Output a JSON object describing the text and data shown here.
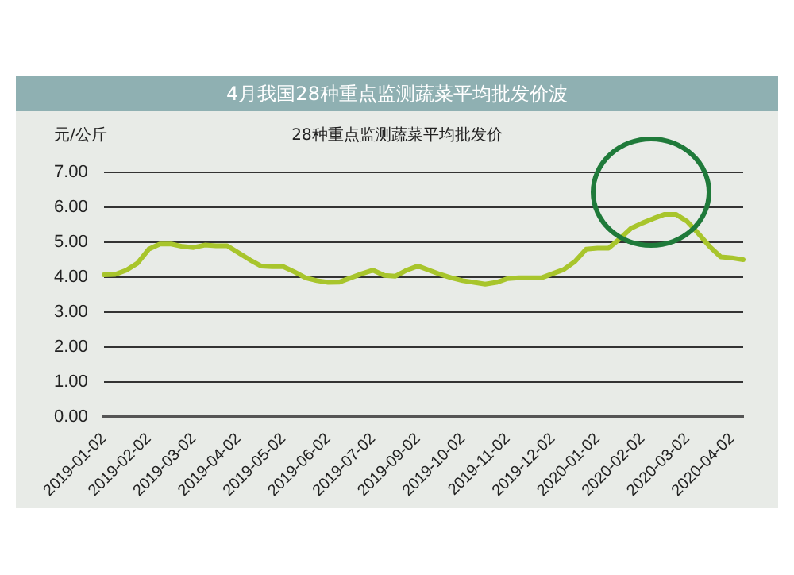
{
  "chart_data": {
    "type": "line",
    "title": "4月我国28种重点监测蔬菜平均批发价波",
    "subtitle": "28种重点监测蔬菜平均批发价",
    "ylabel": "元/公斤",
    "categories": [
      "2019-01-02",
      null,
      null,
      null,
      "2019-02-02",
      null,
      null,
      null,
      "2019-03-02",
      null,
      null,
      null,
      "2019-04-02",
      null,
      null,
      null,
      "2019-05-02",
      null,
      null,
      null,
      "2019-06-02",
      null,
      null,
      null,
      "2019-07-02",
      null,
      null,
      null,
      "2019-09-02",
      null,
      null,
      null,
      "2019-10-02",
      null,
      null,
      null,
      "2019-11-02",
      null,
      null,
      null,
      "2019-12-02",
      null,
      null,
      null,
      "2020-01-02",
      null,
      null,
      null,
      "2020-02-02",
      null,
      null,
      null,
      "2020-03-02",
      null,
      null,
      null,
      "2020-04-02",
      null
    ],
    "series": [
      {
        "color": "#a8c52c",
        "values": [
          4.07,
          4.08,
          4.2,
          4.4,
          4.8,
          4.95,
          4.95,
          4.88,
          4.85,
          4.92,
          4.9,
          4.9,
          4.7,
          4.5,
          4.32,
          4.3,
          4.3,
          4.15,
          3.98,
          3.9,
          3.85,
          3.86,
          3.98,
          4.1,
          4.2,
          4.05,
          4.03,
          4.2,
          4.32,
          4.2,
          4.08,
          3.98,
          3.9,
          3.85,
          3.8,
          3.85,
          3.96,
          3.98,
          3.98,
          3.98,
          4.1,
          4.22,
          4.45,
          4.8,
          4.83,
          4.83,
          5.1,
          5.4,
          5.55,
          5.68,
          5.8,
          5.8,
          5.6,
          5.25,
          4.88,
          4.58,
          4.55,
          4.5
        ]
      }
    ],
    "ylim": [
      0,
      7
    ],
    "yticks": [
      {
        "value": 0,
        "label": "0.00"
      },
      {
        "value": 1,
        "label": "1.00"
      },
      {
        "value": 2,
        "label": "2.00"
      },
      {
        "value": 3,
        "label": "3.00"
      },
      {
        "value": 4,
        "label": "4.00"
      },
      {
        "value": 5,
        "label": "5.00"
      },
      {
        "value": 6,
        "label": "6.00"
      },
      {
        "value": 7,
        "label": "7.00"
      }
    ],
    "grid": "y",
    "legend": false,
    "marker": "none",
    "line_style": "solid"
  }
}
